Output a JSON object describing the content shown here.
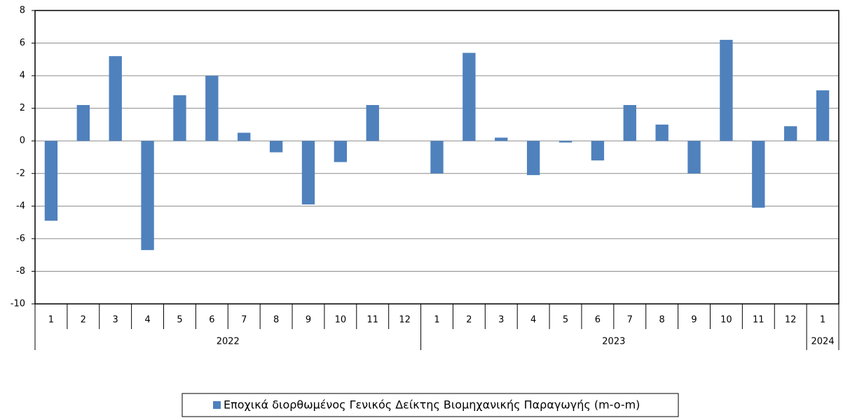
{
  "chart_data": {
    "type": "bar",
    "groups": [
      {
        "label": "2022",
        "categories": [
          "1",
          "2",
          "3",
          "4",
          "5",
          "6",
          "7",
          "8",
          "9",
          "10",
          "11",
          "12"
        ]
      },
      {
        "label": "2023",
        "categories": [
          "1",
          "2",
          "3",
          "4",
          "5",
          "6",
          "7",
          "8",
          "9",
          "10",
          "11",
          "12"
        ]
      },
      {
        "label": "2024",
        "categories": [
          "1"
        ]
      }
    ],
    "series": [
      {
        "name": "Εποχικά διορθωμένος Γενικός Δείκτης Βιομηχανικής Παραγωγής (m-o-m)",
        "color": "#4f81bd",
        "values": [
          -4.9,
          2.2,
          5.2,
          -6.7,
          2.8,
          4.0,
          0.5,
          -0.7,
          -3.9,
          -1.3,
          2.2,
          0,
          -2.0,
          5.4,
          0.2,
          -2.1,
          -0.1,
          -1.2,
          2.2,
          1.0,
          -2.0,
          6.2,
          -4.1,
          0.9,
          3.1
        ]
      }
    ],
    "ylim": [
      -10,
      8
    ],
    "yticks": [
      -10,
      -8,
      -6,
      -4,
      -2,
      0,
      2,
      4,
      6,
      8
    ],
    "grid": true,
    "legend": "bottom"
  }
}
